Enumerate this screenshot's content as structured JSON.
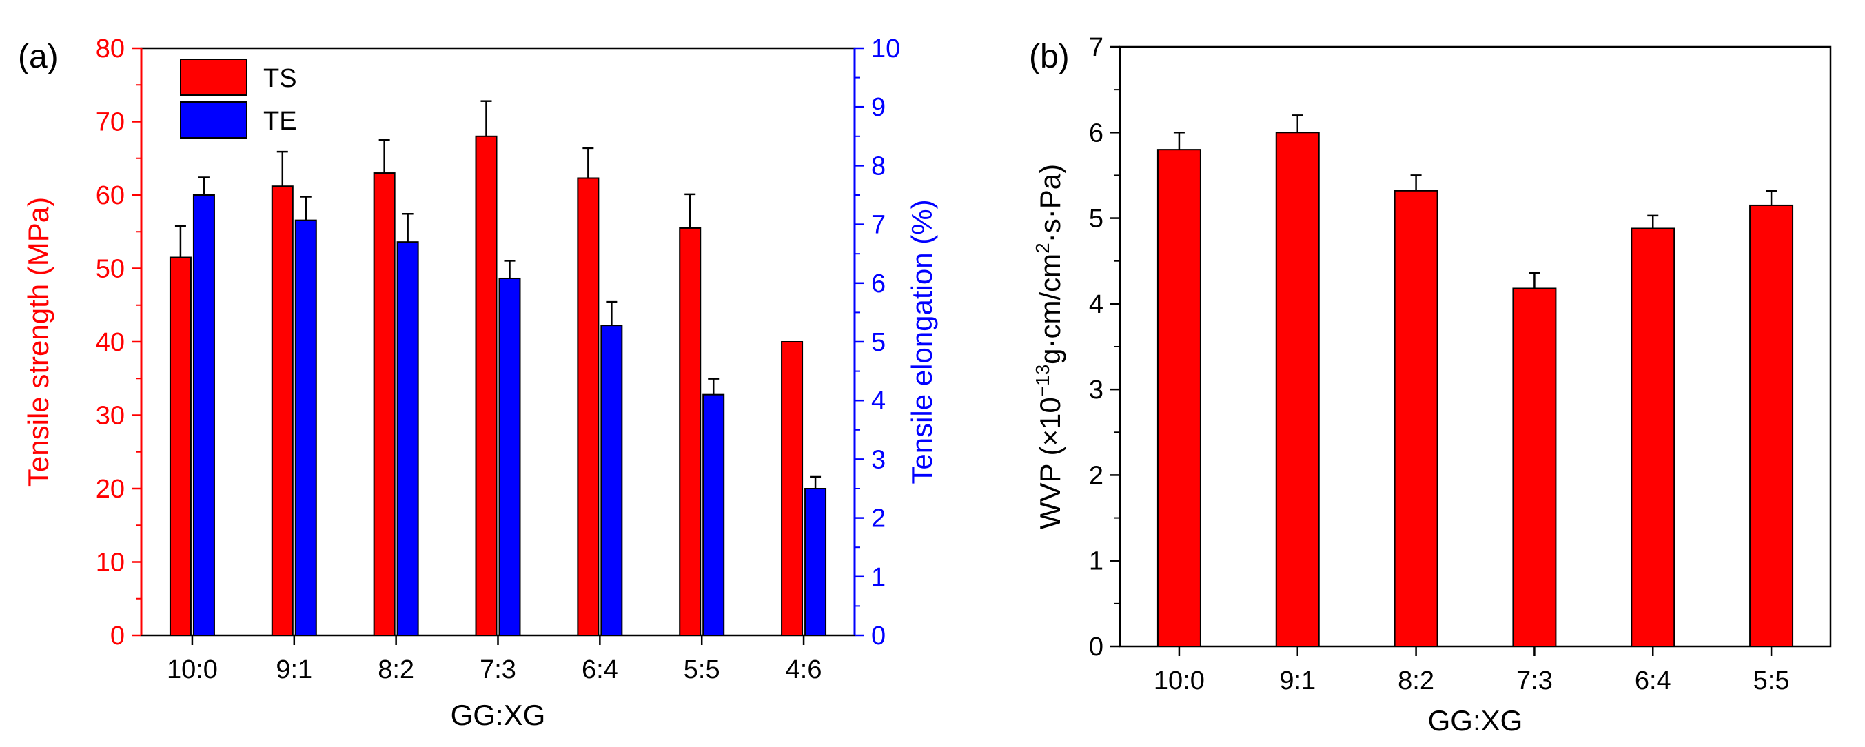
{
  "chart_data": [
    {
      "panel_label": "(a)",
      "type": "bar",
      "xlabel": "GG:XG",
      "categories": [
        "10:0",
        "9:1",
        "8:2",
        "7:3",
        "6:4",
        "5:5",
        "4:6"
      ],
      "y_left": {
        "label": "Tensile strength (MPa)",
        "lim": [
          0,
          80
        ],
        "ticks": [
          "0",
          "10",
          "20",
          "30",
          "40",
          "50",
          "60",
          "70",
          "80"
        ],
        "color": "#ff0000"
      },
      "y_right": {
        "label": "Tensile elongation (%)",
        "lim": [
          0,
          10
        ],
        "ticks": [
          "0",
          "1",
          "2",
          "3",
          "4",
          "5",
          "6",
          "7",
          "8",
          "9",
          "10"
        ],
        "color": "#0000ff"
      },
      "series": [
        {
          "name": "TS",
          "axis": "left",
          "color": "#ff0000",
          "values": [
            51.5,
            61.2,
            63.0,
            68.0,
            62.3,
            55.5,
            40.0
          ],
          "errors": [
            4.3,
            4.7,
            4.5,
            4.8,
            4.1,
            4.6,
            0
          ]
        },
        {
          "name": "TE",
          "axis": "right",
          "color": "#0000ff",
          "values": [
            7.5,
            7.07,
            6.7,
            6.08,
            5.28,
            4.1,
            2.5
          ],
          "errors": [
            0.3,
            0.4,
            0.48,
            0.3,
            0.4,
            0.27,
            0.2
          ]
        }
      ],
      "legend": {
        "position": "top-left",
        "entries": [
          "TS",
          "TE"
        ]
      }
    },
    {
      "panel_label": "(b)",
      "type": "bar",
      "xlabel": "GG:XG",
      "categories": [
        "10:0",
        "9:1",
        "8:2",
        "7:3",
        "6:4",
        "5:5"
      ],
      "y_left": {
        "label_parts": [
          "WVP (×10",
          "−13",
          "g·cm/cm",
          "2",
          "·s·Pa)"
        ],
        "lim": [
          0,
          7
        ],
        "ticks": [
          "0",
          "1",
          "2",
          "3",
          "4",
          "5",
          "6",
          "7"
        ],
        "color": "#000000"
      },
      "series": [
        {
          "name": "WVP",
          "color": "#ff0000",
          "values": [
            5.8,
            6.0,
            5.32,
            4.18,
            4.88,
            5.15
          ],
          "errors": [
            0.2,
            0.2,
            0.18,
            0.18,
            0.15,
            0.17
          ]
        }
      ]
    }
  ]
}
